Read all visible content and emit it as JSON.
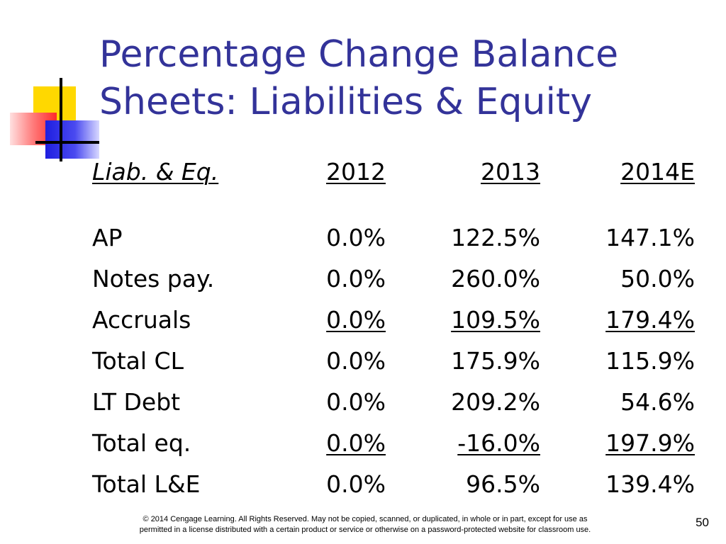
{
  "slide": {
    "title_line1": "Percentage Change Balance",
    "title_line2": "Sheets: Liabilities & Equity"
  },
  "table": {
    "header": [
      "Liab. & Eq.",
      "2012",
      "2013",
      "2014E"
    ],
    "rows": [
      [
        "AP",
        "0.0%",
        "122.5%",
        "147.1%"
      ],
      [
        "Notes pay.",
        "0.0%",
        "260.0%",
        "50.0%"
      ],
      [
        "Accruals",
        "0.0%",
        "109.5%",
        "179.4%"
      ],
      [
        "Total CL",
        "0.0%",
        "175.9%",
        "115.9%"
      ],
      [
        "LT Debt",
        "0.0%",
        "209.2%",
        "54.6%"
      ],
      [
        "Total eq.",
        "0.0%",
        "-16.0%",
        "197.9%"
      ],
      [
        "Total L&E",
        "0.0%",
        "96.5%",
        "139.4%"
      ]
    ]
  },
  "footer": {
    "copyright_line1": "© 2014 Cengage Learning. All Rights Reserved. May not be copied, scanned, or duplicated, in whole or in part, except for use as",
    "copyright_line2": "permitted in a license distributed with a certain product or service or otherwise on a password-protected website for classroom use.",
    "page_number": "50"
  },
  "colors": {
    "title": "#333399",
    "logo_yellow": "#ffd800",
    "logo_red": "#ff2a2a",
    "logo_blue": "#1e1ee0"
  }
}
